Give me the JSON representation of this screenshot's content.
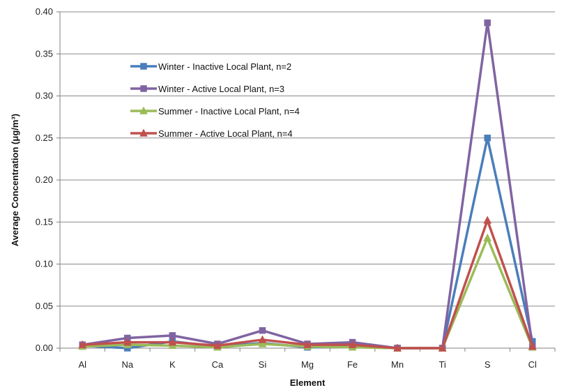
{
  "chart_data": {
    "type": "line",
    "categories": [
      "Al",
      "Na",
      "K",
      "Ca",
      "Si",
      "Mg",
      "Fe",
      "Mn",
      "Ti",
      "S",
      "Cl"
    ],
    "xlabel": "Element",
    "ylabel": "Average Concentration (μg/m³)",
    "ylim": [
      0,
      0.4
    ],
    "ytick_step": 0.05,
    "grid": "horizontal",
    "legend_position": "upper-left-inside",
    "series": [
      {
        "name": "Winter - Inactive Local Plant, n=2",
        "color": "#4a7ebb",
        "marker": "square",
        "values": [
          0.003,
          0.0,
          0.008,
          0.002,
          0.006,
          0.001,
          0.002,
          0.0,
          0.0,
          0.25,
          0.008
        ]
      },
      {
        "name": "Winter - Active Local Plant, n=3",
        "color": "#8064a2",
        "marker": "square",
        "values": [
          0.004,
          0.012,
          0.015,
          0.005,
          0.021,
          0.005,
          0.007,
          0.0,
          0.0,
          0.387,
          0.002
        ]
      },
      {
        "name": "Summer - Inactive Local Plant, n=4",
        "color": "#9bbb59",
        "marker": "triangle",
        "values": [
          0.002,
          0.004,
          0.003,
          0.001,
          0.005,
          0.002,
          0.001,
          0.0,
          0.0,
          0.131,
          0.001
        ]
      },
      {
        "name": "Summer - Active Local Plant, n=4",
        "color": "#c0504d",
        "marker": "triangle",
        "values": [
          0.004,
          0.007,
          0.007,
          0.003,
          0.01,
          0.004,
          0.004,
          0.0,
          0.0,
          0.152,
          0.002
        ]
      }
    ]
  }
}
